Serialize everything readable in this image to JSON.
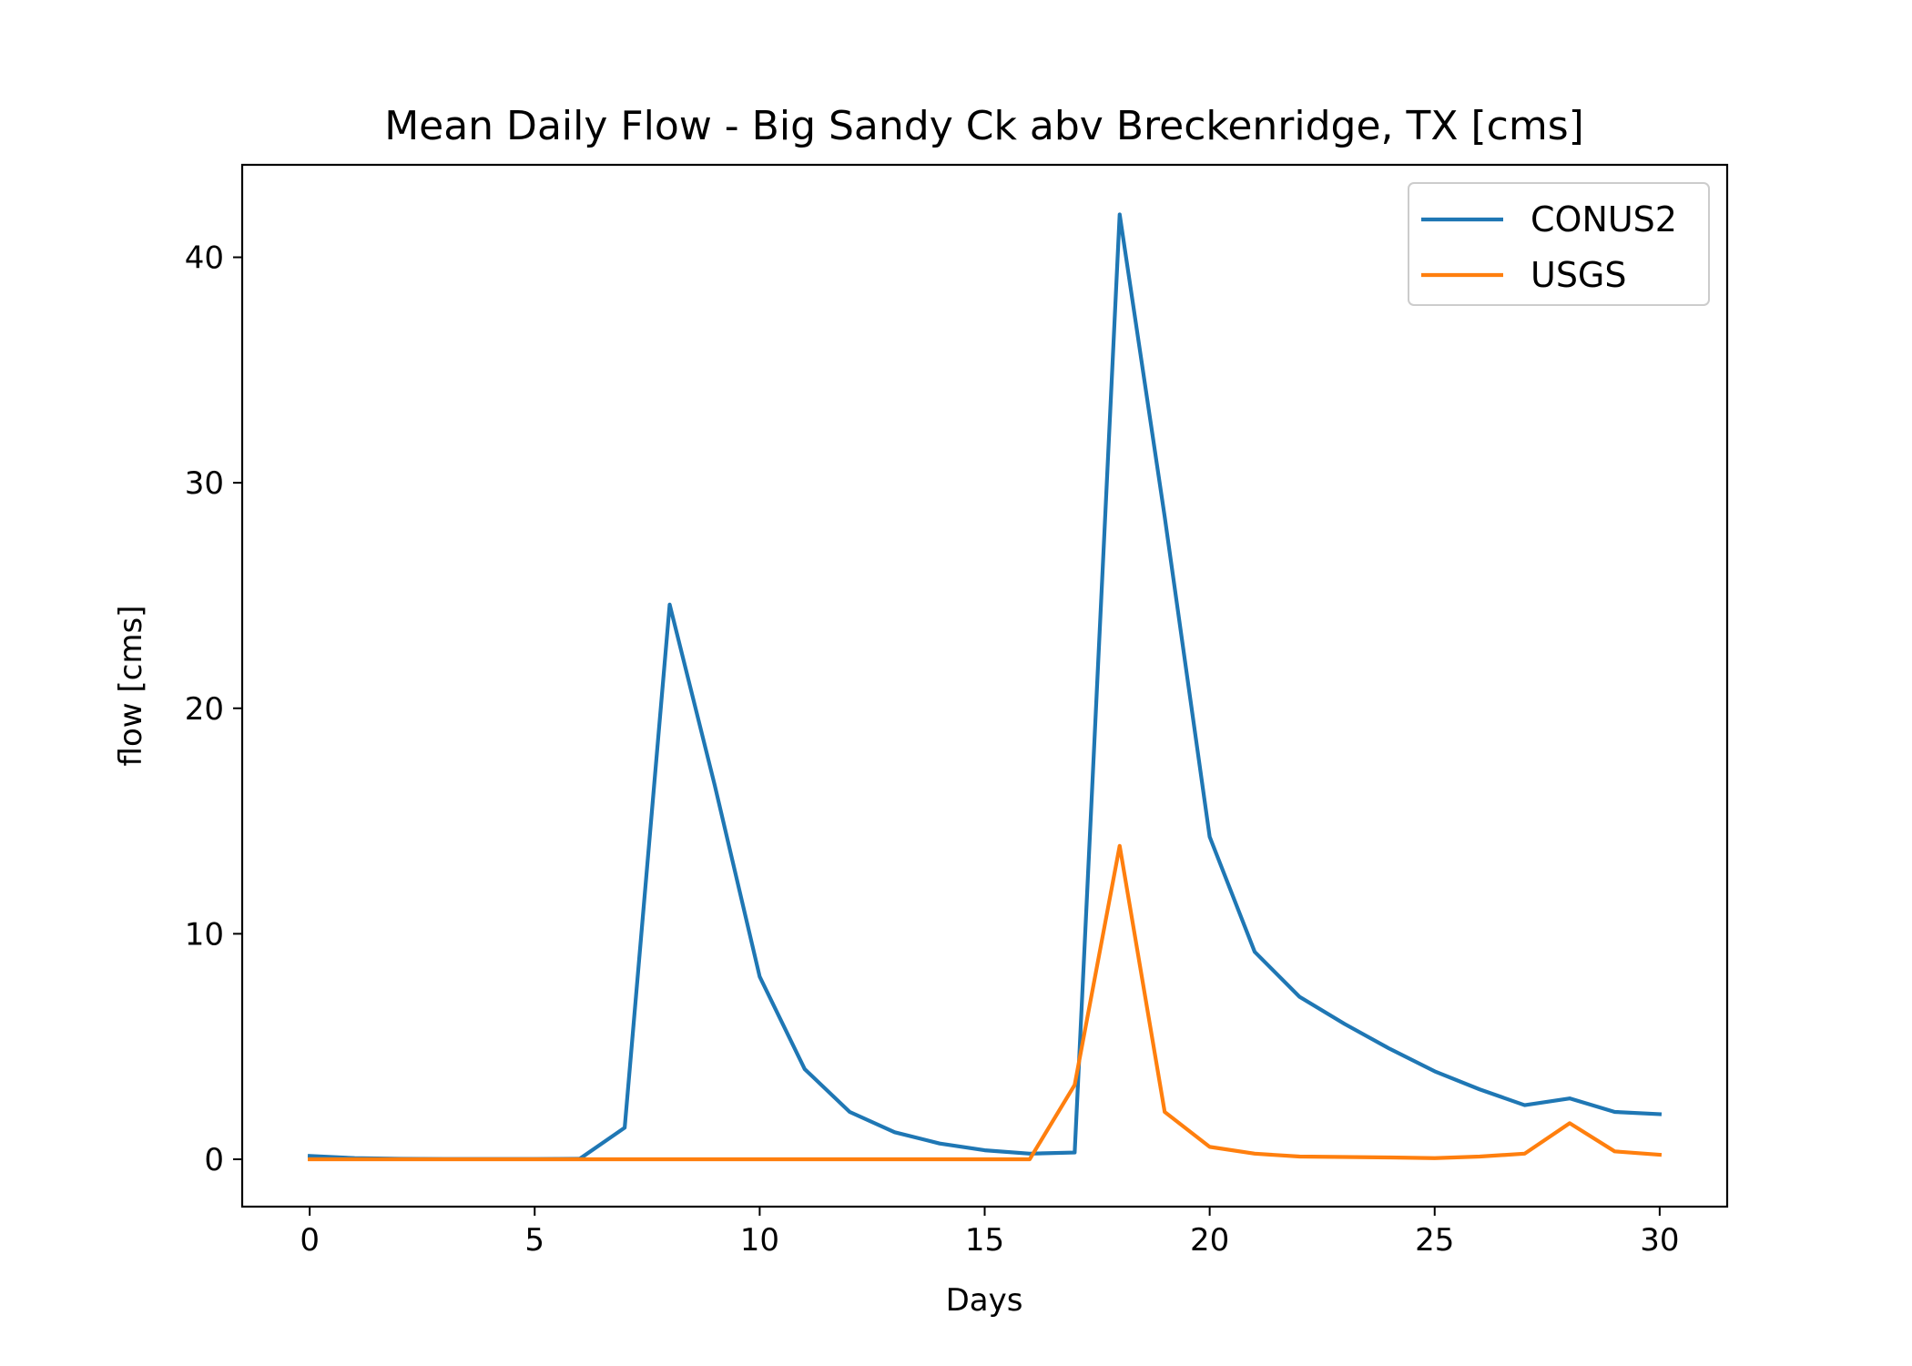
{
  "chart_data": {
    "type": "line",
    "title": "Mean Daily Flow - Big Sandy Ck abv Breckenridge, TX [cms]",
    "xlabel": "Days",
    "ylabel": "flow [cms]",
    "xlim": [
      -1.5,
      31.5
    ],
    "ylim": [
      -2.1,
      44.1
    ],
    "xticks": [
      0,
      5,
      10,
      15,
      20,
      25,
      30
    ],
    "yticks": [
      0,
      10,
      20,
      30,
      40
    ],
    "grid": false,
    "legend_position": "top-right",
    "x": [
      0,
      1,
      2,
      3,
      4,
      5,
      6,
      7,
      8,
      9,
      10,
      11,
      12,
      13,
      14,
      15,
      16,
      17,
      18,
      19,
      20,
      21,
      22,
      23,
      24,
      25,
      26,
      27,
      28,
      29,
      30
    ],
    "series": [
      {
        "name": "CONUS2",
        "color": "#1f77b4",
        "values": [
          0.15,
          0.05,
          0.02,
          0.01,
          0.01,
          0.01,
          0.02,
          1.4,
          24.6,
          16.6,
          8.1,
          4.0,
          2.1,
          1.2,
          0.7,
          0.4,
          0.25,
          0.3,
          41.9,
          28.5,
          14.3,
          9.2,
          7.2,
          6.0,
          4.9,
          3.9,
          3.1,
          2.4,
          2.7,
          2.1,
          2.0
        ]
      },
      {
        "name": "USGS",
        "color": "#ff7f0e",
        "values": [
          0.0,
          0.0,
          0.0,
          0.0,
          0.0,
          0.0,
          0.0,
          0.0,
          0.0,
          0.0,
          0.0,
          0.0,
          0.0,
          0.0,
          0.0,
          0.0,
          0.0,
          3.3,
          13.9,
          2.1,
          0.55,
          0.25,
          0.12,
          0.1,
          0.08,
          0.05,
          0.12,
          0.25,
          1.6,
          0.35,
          0.2
        ]
      }
    ]
  }
}
